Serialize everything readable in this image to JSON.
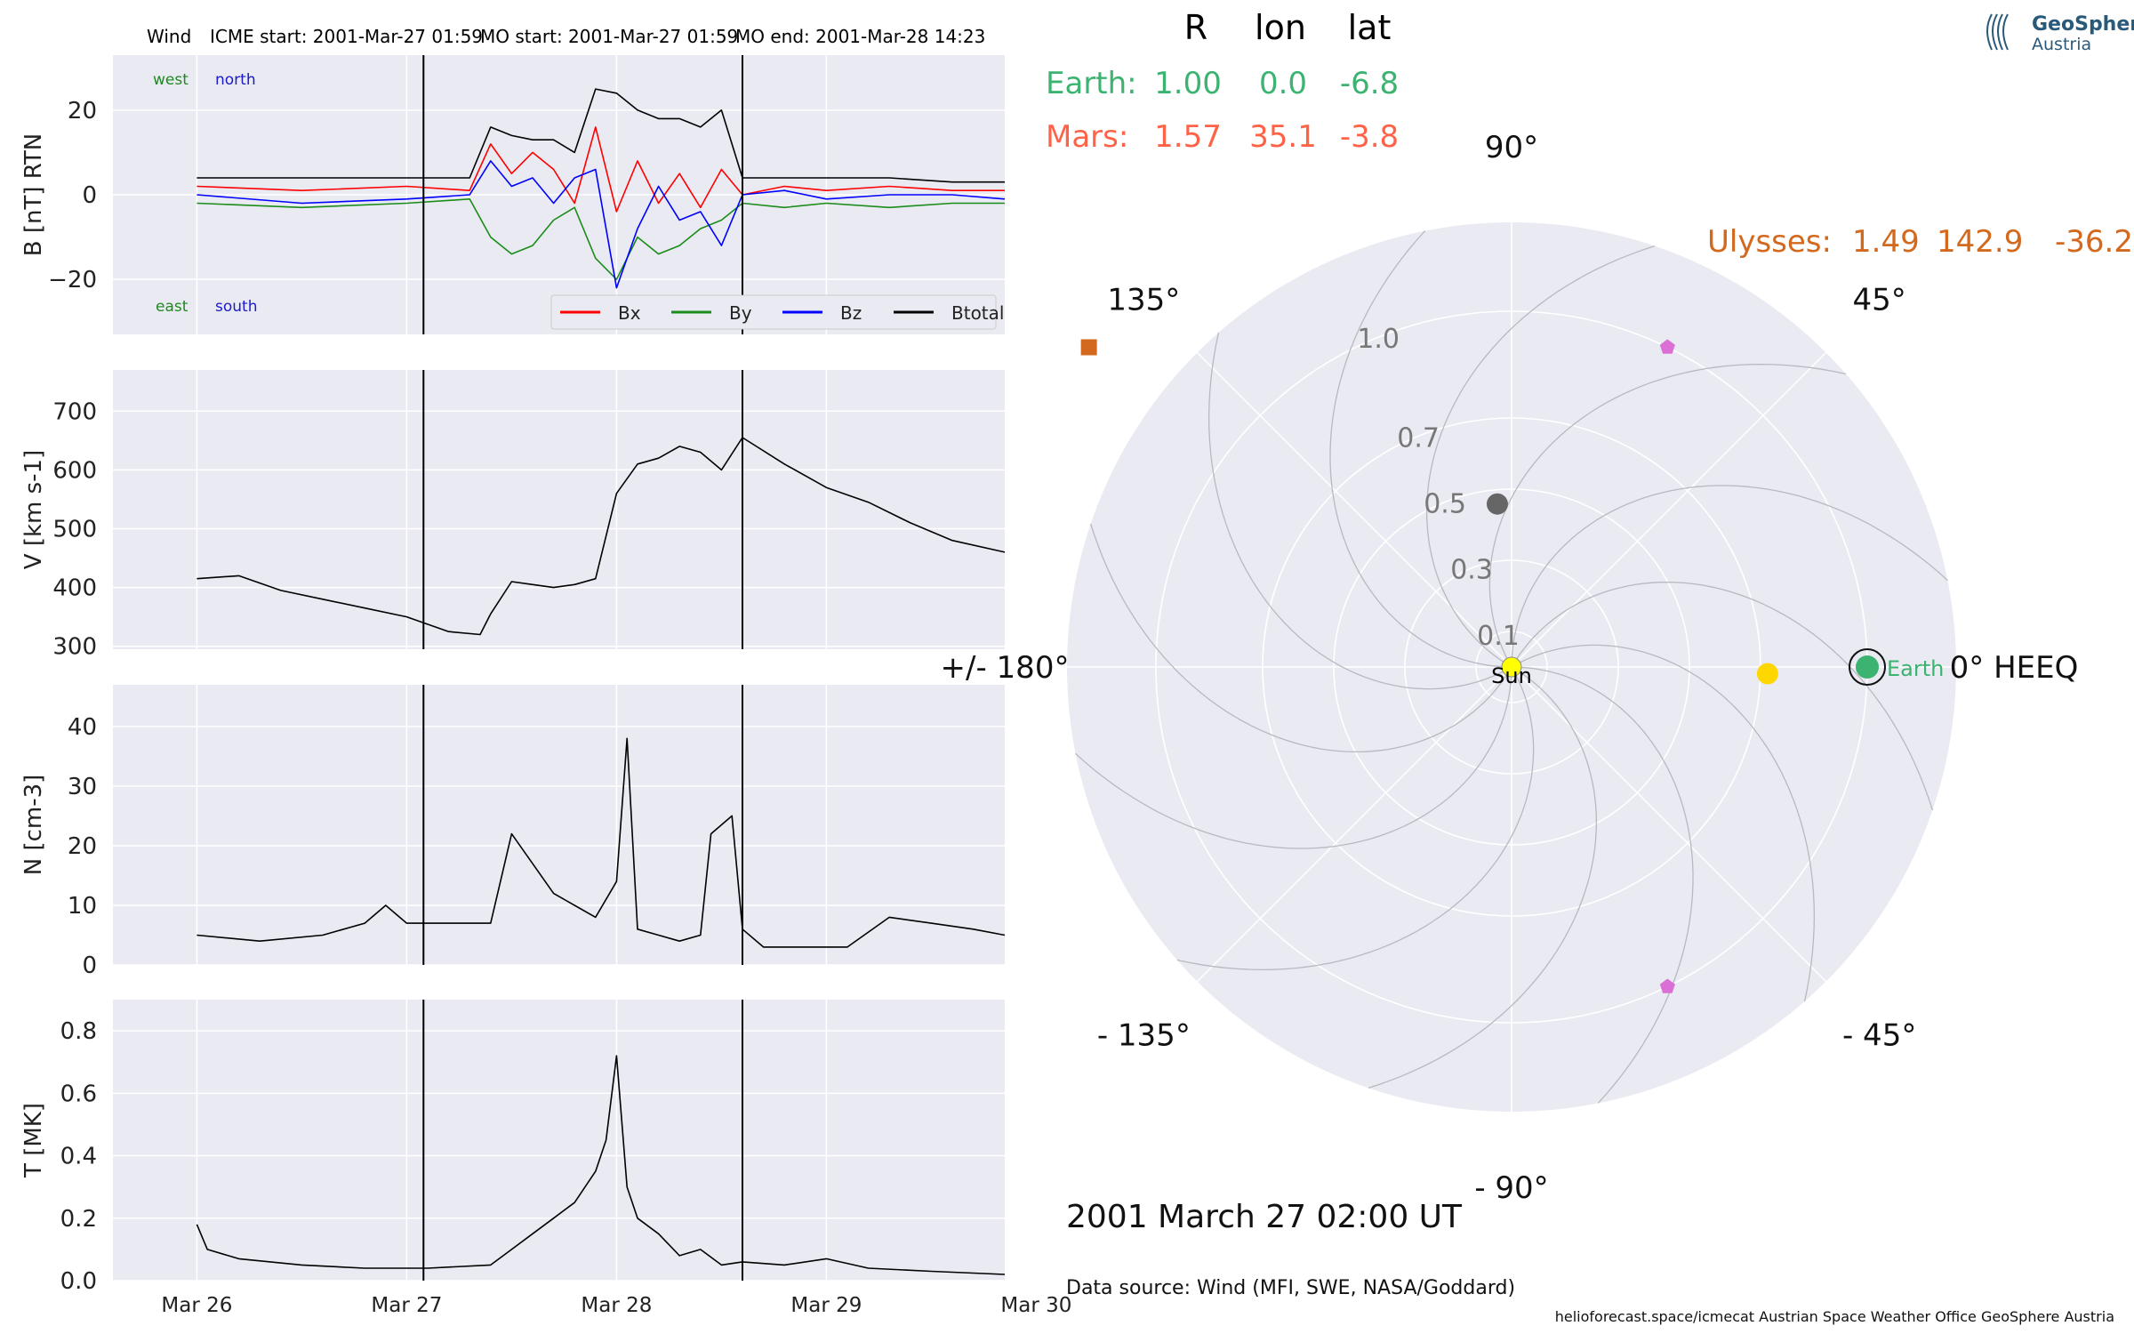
{
  "header": {
    "spacecraft": "Wind",
    "icme_start": "ICME start: 2001-Mar-27 01:59",
    "mo_start": "MO start: 2001-Mar-27 01:59",
    "mo_end": "MO end: 2001-Mar-28 14:23"
  },
  "chart_data": [
    {
      "type": "line",
      "ylabel": "B [nT] RTN",
      "ylim": [
        -33,
        33
      ],
      "yticks": [
        -20,
        0,
        20
      ],
      "grid": true,
      "legend_placement": "bottom-right",
      "annotations": [
        {
          "text": "west",
          "color": "#1f8a1f",
          "position": "top-left"
        },
        {
          "text": "north",
          "color": "#1a1acc",
          "position": "top-left"
        },
        {
          "text": "east",
          "color": "#1f8a1f",
          "position": "bottom-left"
        },
        {
          "text": "south",
          "color": "#1a1acc",
          "position": "bottom-left"
        }
      ],
      "series": [
        {
          "name": "Bx",
          "color": "#ff0000",
          "x": [
            0,
            0.5,
            1,
            1.3,
            1.4,
            1.5,
            1.6,
            1.7,
            1.8,
            1.9,
            2.0,
            2.1,
            2.2,
            2.3,
            2.4,
            2.5,
            2.6,
            2.8,
            3.0,
            3.3,
            3.6,
            3.85
          ],
          "y": [
            2,
            1,
            2,
            1,
            12,
            5,
            10,
            6,
            -2,
            16,
            -4,
            8,
            -2,
            5,
            -3,
            6,
            0,
            2,
            1,
            2,
            1,
            1
          ]
        },
        {
          "name": "By",
          "color": "#1a8c1a",
          "x": [
            0,
            0.5,
            1,
            1.3,
            1.4,
            1.5,
            1.6,
            1.7,
            1.8,
            1.9,
            2.0,
            2.1,
            2.2,
            2.3,
            2.4,
            2.5,
            2.6,
            2.8,
            3.0,
            3.3,
            3.6,
            3.85
          ],
          "y": [
            -2,
            -3,
            -2,
            -1,
            -10,
            -14,
            -12,
            -6,
            -3,
            -15,
            -20,
            -10,
            -14,
            -12,
            -8,
            -6,
            -2,
            -3,
            -2,
            -3,
            -2,
            -2
          ]
        },
        {
          "name": "Bz",
          "color": "#0000ff",
          "x": [
            0,
            0.5,
            1,
            1.3,
            1.4,
            1.5,
            1.6,
            1.7,
            1.8,
            1.9,
            2.0,
            2.1,
            2.2,
            2.3,
            2.4,
            2.5,
            2.6,
            2.8,
            3.0,
            3.3,
            3.6,
            3.85
          ],
          "y": [
            0,
            -2,
            -1,
            0,
            8,
            2,
            4,
            -2,
            4,
            6,
            -22,
            -8,
            2,
            -6,
            -4,
            -12,
            0,
            1,
            -1,
            0,
            0,
            -1
          ]
        },
        {
          "name": "Btotal",
          "color": "#000000",
          "x": [
            0,
            0.5,
            1,
            1.3,
            1.4,
            1.5,
            1.6,
            1.7,
            1.8,
            1.9,
            2.0,
            2.1,
            2.2,
            2.3,
            2.4,
            2.5,
            2.6,
            2.8,
            3.0,
            3.3,
            3.6,
            3.85
          ],
          "y": [
            4,
            4,
            4,
            4,
            16,
            14,
            13,
            13,
            10,
            25,
            24,
            20,
            18,
            18,
            16,
            20,
            4,
            4,
            4,
            4,
            3,
            3
          ]
        }
      ]
    },
    {
      "type": "line",
      "ylabel": "V [km s-1]",
      "ylim": [
        295,
        770
      ],
      "yticks": [
        300,
        400,
        500,
        600,
        700
      ],
      "grid": true,
      "series": [
        {
          "name": "",
          "color": "#000000",
          "x": [
            0,
            0.2,
            0.4,
            0.6,
            0.8,
            1.0,
            1.2,
            1.35,
            1.4,
            1.5,
            1.6,
            1.7,
            1.8,
            1.9,
            2.0,
            2.1,
            2.2,
            2.3,
            2.4,
            2.5,
            2.6,
            2.8,
            3.0,
            3.2,
            3.4,
            3.6,
            3.85
          ],
          "y": [
            415,
            420,
            395,
            380,
            365,
            350,
            325,
            320,
            355,
            410,
            405,
            400,
            405,
            415,
            560,
            610,
            620,
            640,
            630,
            600,
            655,
            610,
            570,
            545,
            510,
            480,
            460
          ]
        }
      ]
    },
    {
      "type": "line",
      "ylabel": "N [cm-3]",
      "ylim": [
        0,
        47
      ],
      "yticks": [
        0,
        10,
        20,
        30,
        40
      ],
      "grid": true,
      "series": [
        {
          "name": "",
          "color": "#000000",
          "x": [
            0,
            0.3,
            0.6,
            0.8,
            0.9,
            1.0,
            1.2,
            1.4,
            1.5,
            1.6,
            1.7,
            1.8,
            1.9,
            2.0,
            2.05,
            2.1,
            2.2,
            2.3,
            2.4,
            2.45,
            2.55,
            2.6,
            2.7,
            2.9,
            3.1,
            3.3,
            3.5,
            3.7,
            3.85
          ],
          "y": [
            5,
            4,
            5,
            7,
            10,
            7,
            7,
            7,
            22,
            17,
            12,
            10,
            8,
            14,
            38,
            6,
            5,
            4,
            5,
            22,
            25,
            6,
            3,
            3,
            3,
            8,
            7,
            6,
            5
          ]
        }
      ]
    },
    {
      "type": "line",
      "ylabel": "T [MK]",
      "ylim": [
        0,
        0.9
      ],
      "yticks": [
        0.0,
        0.2,
        0.4,
        0.6,
        0.8
      ],
      "xlabel": "",
      "xticks": [
        "Mar 26",
        "Mar 27",
        "Mar 28",
        "Mar 29",
        "Mar 30"
      ],
      "grid": true,
      "series": [
        {
          "name": "",
          "color": "#000000",
          "x": [
            0,
            0.05,
            0.2,
            0.5,
            0.8,
            1.1,
            1.4,
            1.5,
            1.6,
            1.7,
            1.8,
            1.9,
            1.95,
            2.0,
            2.05,
            2.1,
            2.2,
            2.3,
            2.4,
            2.5,
            2.6,
            2.8,
            3.0,
            3.2,
            3.5,
            3.85
          ],
          "y": [
            0.18,
            0.1,
            0.07,
            0.05,
            0.04,
            0.04,
            0.05,
            0.1,
            0.15,
            0.2,
            0.25,
            0.35,
            0.45,
            0.72,
            0.3,
            0.2,
            0.15,
            0.08,
            0.1,
            0.05,
            0.06,
            0.05,
            0.07,
            0.04,
            0.03,
            0.02
          ]
        }
      ]
    },
    {
      "type": "scatter",
      "subtype": "polar",
      "theta_labels": [
        "0° HEEQ",
        "45°",
        "90°",
        "135°",
        "+/- 180°",
        "- 135°",
        "- 90°",
        "- 45°"
      ],
      "r_labels": [
        "0.1",
        "0.3",
        "0.5",
        "0.7",
        "1.0"
      ],
      "points": [
        {
          "name": "Sun",
          "r": 0.0,
          "lon": 0.0,
          "color": "#ffff00"
        },
        {
          "name": "Earth",
          "r": 1.0,
          "lon": 0.0,
          "color": "#3cb371"
        },
        {
          "name": "",
          "r": 0.72,
          "lon": -1.5,
          "color": "#ffd700"
        },
        {
          "name": "",
          "r": 0.46,
          "lon": 95.0,
          "color": "#666666"
        },
        {
          "name": "",
          "r": 1.49,
          "lon": 142.9,
          "color": "#d2691e"
        },
        {
          "name": "",
          "r": 1.0,
          "lon": 64.0,
          "color": "#da70d6"
        },
        {
          "name": "",
          "r": 1.0,
          "lon": -64.0,
          "color": "#da70d6"
        }
      ]
    }
  ],
  "table": {
    "headers": [
      "R",
      "lon",
      "lat"
    ],
    "rows": [
      {
        "label": "Earth:",
        "r": "1.00",
        "lon": "0.0",
        "lat": "-6.8",
        "color": "#3cb371"
      },
      {
        "label": "Mars:",
        "r": "1.57",
        "lon": "35.1",
        "lat": "-3.8",
        "color": "#ff6347"
      }
    ]
  },
  "ulysses": {
    "label": "Ulysses:",
    "r": "1.49",
    "lon": "142.9",
    "lat": "-36.2",
    "color": "#d2691e"
  },
  "timestamp": "2001 March 27  02:00 UT",
  "data_source": "Data source: Wind (MFI, SWE, NASA/Goddard)",
  "footer": "helioforecast.space/icmecat   Austrian Space Weather Office   GeoSphere Austria",
  "logo": {
    "line1": "GeoSphere",
    "line2": "Austria"
  }
}
